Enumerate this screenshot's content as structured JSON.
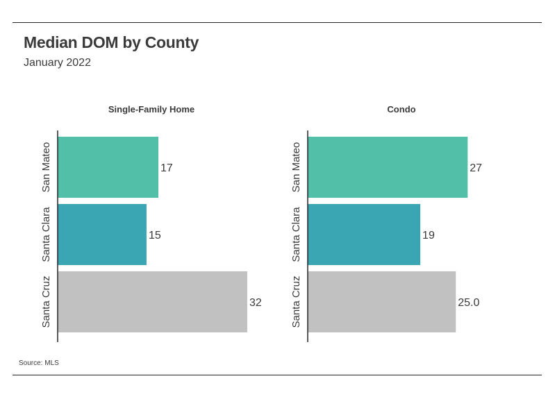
{
  "header": {
    "title": "Median DOM by County",
    "subtitle": "January 2022"
  },
  "footer": {
    "source": "Source:  MLS"
  },
  "colors": {
    "San Mateo": "#52bfa8",
    "Santa Clara": "#3ba6b3",
    "Santa Cruz": "#c1c1c1"
  },
  "chart_data": [
    {
      "type": "bar",
      "orientation": "horizontal",
      "title": "Single-Family Home",
      "categories": [
        "San Mateo",
        "Santa Clara",
        "Santa Cruz"
      ],
      "values": [
        17,
        15,
        32
      ],
      "labels": [
        "17",
        "15",
        "32"
      ],
      "xlim": [
        0,
        34
      ]
    },
    {
      "type": "bar",
      "orientation": "horizontal",
      "title": "Condo",
      "categories": [
        "San Mateo",
        "Santa Clara",
        "Santa Cruz"
      ],
      "values": [
        27,
        19,
        25.0
      ],
      "labels": [
        "27",
        "19",
        "25.0"
      ],
      "xlim": [
        0,
        34
      ]
    }
  ]
}
